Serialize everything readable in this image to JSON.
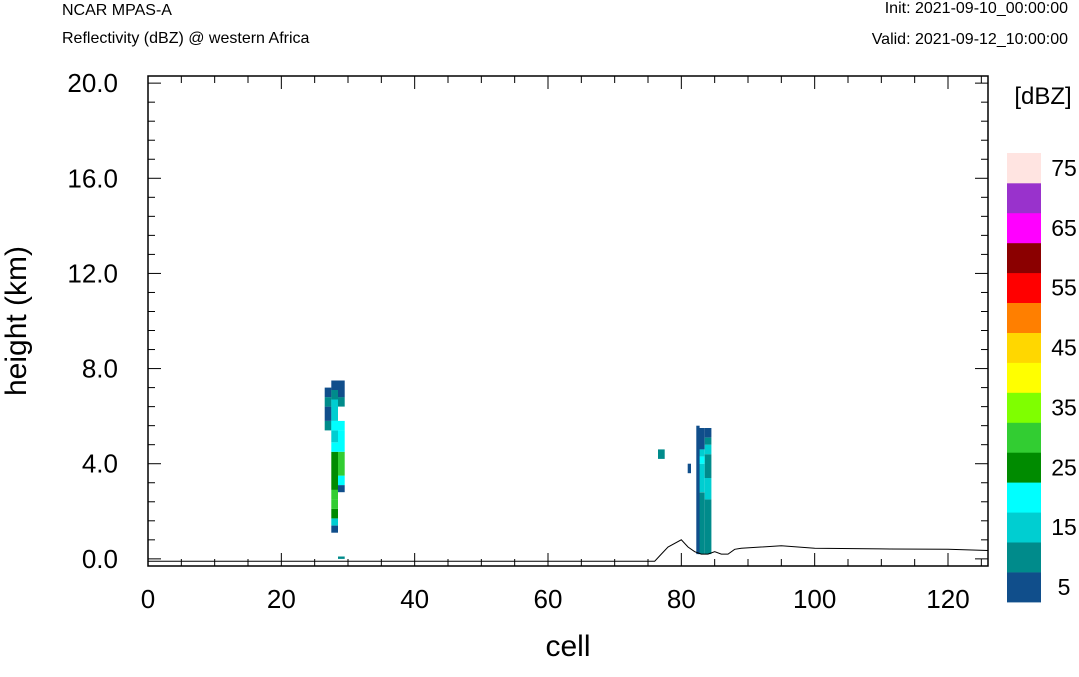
{
  "header": {
    "model": "NCAR MPAS-A",
    "subtitle": "Reflectivity (dBZ) @ western Africa",
    "init": "Init: 2021-09-10_00:00:00",
    "valid": "Valid: 2021-09-12_10:00:00"
  },
  "chart_data": {
    "type": "heatmap",
    "title": "Reflectivity (dBZ) @ western Africa",
    "xlabel": "cell",
    "ylabel": "height (km)",
    "xlim": [
      0,
      126
    ],
    "ylim": [
      -0.3,
      20.3
    ],
    "xticks": [
      0,
      20,
      40,
      60,
      80,
      100,
      120
    ],
    "xtick_labels": [
      "0",
      "20",
      "40",
      "60",
      "80",
      "100",
      "120"
    ],
    "yticks": [
      0,
      4,
      8,
      12,
      16,
      20
    ],
    "ytick_labels": [
      "0.0",
      "4.0",
      "8.0",
      "12.0",
      "16.0",
      "20.0"
    ],
    "colorbar": {
      "unit": "[dBZ]",
      "levels": [
        5,
        10,
        15,
        20,
        25,
        30,
        35,
        40,
        45,
        50,
        55,
        60,
        65,
        70,
        75
      ],
      "labels": [
        "5",
        "15",
        "25",
        "35",
        "45",
        "55",
        "65",
        "75"
      ],
      "colors": [
        "#104e8b",
        "#008b8b",
        "#00ced1",
        "#00ffff",
        "#008b00",
        "#32cd32",
        "#7fff00",
        "#ffff00",
        "#ffd700",
        "#ff7f00",
        "#ff0000",
        "#8b0000",
        "#ff00ff",
        "#9932cc",
        "#ffe4e1"
      ]
    },
    "cells": [
      {
        "x": 27,
        "y0": 5.4,
        "y1": 5.8,
        "dbz": 10
      },
      {
        "x": 27,
        "y0": 5.8,
        "y1": 6.4,
        "dbz": 5
      },
      {
        "x": 27,
        "y0": 6.4,
        "y1": 6.8,
        "dbz": 10
      },
      {
        "x": 27,
        "y0": 6.8,
        "y1": 7.2,
        "dbz": 5
      },
      {
        "x": 28,
        "y0": 1.1,
        "y1": 1.4,
        "dbz": 5
      },
      {
        "x": 28,
        "y0": 1.4,
        "y1": 1.7,
        "dbz": 15
      },
      {
        "x": 28,
        "y0": 1.7,
        "y1": 2.1,
        "dbz": 25
      },
      {
        "x": 28,
        "y0": 2.1,
        "y1": 2.5,
        "dbz": 30
      },
      {
        "x": 28,
        "y0": 2.5,
        "y1": 2.9,
        "dbz": 30
      },
      {
        "x": 28,
        "y0": 2.9,
        "y1": 4.5,
        "dbz": 25
      },
      {
        "x": 28,
        "y0": 4.5,
        "y1": 4.9,
        "dbz": 20
      },
      {
        "x": 28,
        "y0": 4.9,
        "y1": 5.4,
        "dbz": 15
      },
      {
        "x": 28,
        "y0": 5.4,
        "y1": 5.8,
        "dbz": 20
      },
      {
        "x": 28,
        "y0": 5.8,
        "y1": 6.7,
        "dbz": 15
      },
      {
        "x": 28,
        "y0": 6.7,
        "y1": 7.1,
        "dbz": 10
      },
      {
        "x": 28,
        "y0": 7.1,
        "y1": 7.5,
        "dbz": 5
      },
      {
        "x": 29,
        "y0": 2.8,
        "y1": 3.1,
        "dbz": 5
      },
      {
        "x": 29,
        "y0": 3.1,
        "y1": 3.5,
        "dbz": 20
      },
      {
        "x": 29,
        "y0": 3.5,
        "y1": 4.5,
        "dbz": 30
      },
      {
        "x": 29,
        "y0": 4.5,
        "y1": 5.4,
        "dbz": 20
      },
      {
        "x": 29,
        "y0": 5.4,
        "y1": 5.8,
        "dbz": 20
      },
      {
        "x": 29,
        "y0": 6.4,
        "y1": 6.8,
        "dbz": 10
      },
      {
        "x": 29,
        "y0": 6.8,
        "y1": 7.5,
        "dbz": 5
      },
      {
        "x": 29,
        "y0": 0.0,
        "y1": 0.1,
        "dbz": 10
      },
      {
        "x": 77,
        "y0": 4.2,
        "y1": 4.6,
        "dbz": 10
      },
      {
        "x": 83,
        "y0": 0.2,
        "y1": 2.8,
        "dbz": 10
      },
      {
        "x": 83,
        "y0": 2.8,
        "y1": 4.0,
        "dbz": 15
      },
      {
        "x": 83,
        "y0": 4.0,
        "y1": 4.3,
        "dbz": 20
      },
      {
        "x": 83,
        "y0": 4.3,
        "y1": 4.6,
        "dbz": 15
      },
      {
        "x": 83,
        "y0": 4.6,
        "y1": 5.5,
        "dbz": 5
      },
      {
        "x": 84,
        "y0": 0.2,
        "y1": 2.5,
        "dbz": 10
      },
      {
        "x": 84,
        "y0": 2.5,
        "y1": 3.4,
        "dbz": 15
      },
      {
        "x": 84,
        "y0": 3.4,
        "y1": 4.4,
        "dbz": 10
      },
      {
        "x": 84,
        "y0": 4.4,
        "y1": 4.8,
        "dbz": 15
      },
      {
        "x": 84,
        "y0": 4.8,
        "y1": 5.1,
        "dbz": 10
      },
      {
        "x": 84,
        "y0": 5.1,
        "y1": 5.5,
        "dbz": 5
      }
    ],
    "cell_segments": [
      {
        "x": 82.5,
        "y0": 0.2,
        "y1": 5.6,
        "dbz": 5
      },
      {
        "x": 81.2,
        "y0": 3.6,
        "y1": 4.0,
        "dbz": 5
      }
    ],
    "terrain": {
      "x": [
        0,
        76,
        77,
        78,
        80,
        81,
        82,
        83,
        84,
        85,
        86,
        87,
        88,
        89,
        95,
        100,
        110,
        120,
        126
      ],
      "y": [
        -0.1,
        -0.1,
        0.2,
        0.5,
        0.8,
        0.5,
        0.3,
        0.2,
        0.2,
        0.3,
        0.2,
        0.2,
        0.4,
        0.45,
        0.55,
        0.45,
        0.42,
        0.4,
        0.35
      ]
    }
  }
}
